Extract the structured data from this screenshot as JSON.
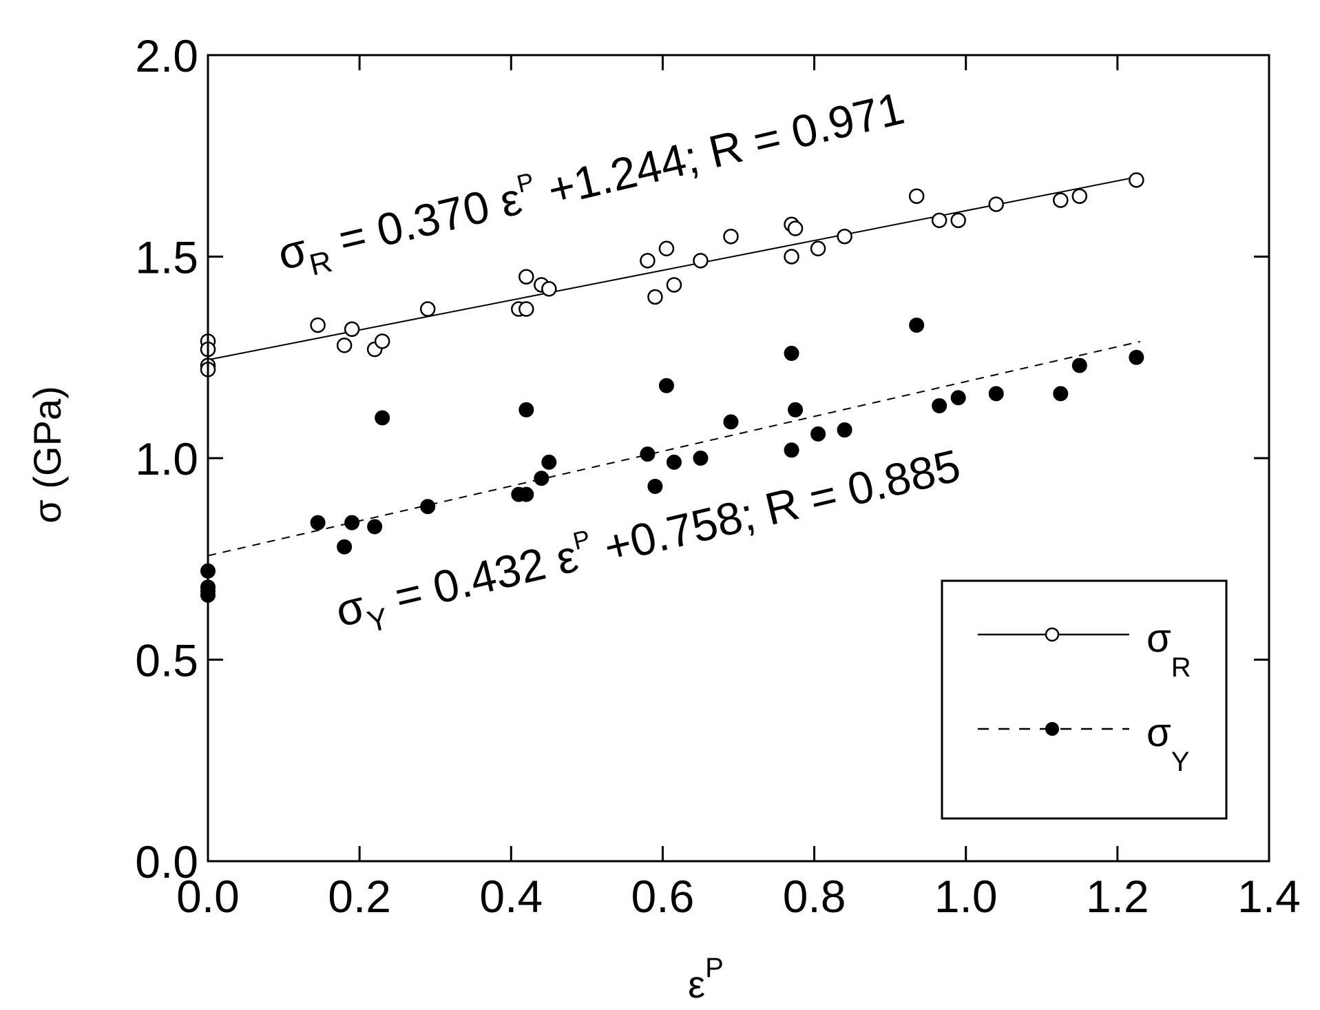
{
  "chart_data": {
    "type": "scatter",
    "title": "",
    "xlabel": "ε",
    "xlabel_sup": "P",
    "ylabel": "σ (GPa)",
    "xlim": [
      0.0,
      1.4
    ],
    "ylim": [
      0.0,
      2.0
    ],
    "x_ticks": [
      0.0,
      0.2,
      0.4,
      0.6,
      0.8,
      1.0,
      1.2,
      1.4
    ],
    "x_tick_labels": [
      "0.0",
      "0.2",
      "0.4",
      "0.6",
      "0.8",
      "1.0",
      "1.2",
      "1.4"
    ],
    "y_ticks": [
      0.0,
      0.5,
      1.0,
      1.5,
      2.0
    ],
    "y_tick_labels": [
      "0.0",
      "0.5",
      "1.0",
      "1.5",
      "2.0"
    ],
    "grid": false,
    "legend_position": "bottom-right",
    "series": [
      {
        "name": "σ",
        "subscript": "R",
        "marker": "open-circle",
        "line_style": "solid",
        "fit": {
          "slope": 0.37,
          "intercept": 1.244,
          "x_range": [
            0.0,
            1.23
          ]
        },
        "equation": {
          "lhs": "σ",
          "sub": "R",
          "mid": " = 0.370 ε",
          "sup": "P",
          "rhs": " +1.244;  R = 0.971"
        },
        "points": [
          {
            "x": 0.0,
            "y": 1.29
          },
          {
            "x": 0.0,
            "y": 1.27
          },
          {
            "x": 0.0,
            "y": 1.23
          },
          {
            "x": 0.0,
            "y": 1.22
          },
          {
            "x": 0.145,
            "y": 1.33
          },
          {
            "x": 0.18,
            "y": 1.28
          },
          {
            "x": 0.19,
            "y": 1.32
          },
          {
            "x": 0.22,
            "y": 1.27
          },
          {
            "x": 0.23,
            "y": 1.29
          },
          {
            "x": 0.29,
            "y": 1.37
          },
          {
            "x": 0.41,
            "y": 1.37
          },
          {
            "x": 0.42,
            "y": 1.37
          },
          {
            "x": 0.42,
            "y": 1.45
          },
          {
            "x": 0.44,
            "y": 1.43
          },
          {
            "x": 0.45,
            "y": 1.42
          },
          {
            "x": 0.58,
            "y": 1.49
          },
          {
            "x": 0.59,
            "y": 1.4
          },
          {
            "x": 0.605,
            "y": 1.52
          },
          {
            "x": 0.615,
            "y": 1.43
          },
          {
            "x": 0.65,
            "y": 1.49
          },
          {
            "x": 0.69,
            "y": 1.55
          },
          {
            "x": 0.77,
            "y": 1.58
          },
          {
            "x": 0.77,
            "y": 1.5
          },
          {
            "x": 0.775,
            "y": 1.57
          },
          {
            "x": 0.805,
            "y": 1.52
          },
          {
            "x": 0.84,
            "y": 1.55
          },
          {
            "x": 0.935,
            "y": 1.65
          },
          {
            "x": 0.965,
            "y": 1.59
          },
          {
            "x": 0.99,
            "y": 1.59
          },
          {
            "x": 1.04,
            "y": 1.63
          },
          {
            "x": 1.125,
            "y": 1.64
          },
          {
            "x": 1.15,
            "y": 1.65
          },
          {
            "x": 1.225,
            "y": 1.69
          }
        ]
      },
      {
        "name": "σ",
        "subscript": "Y",
        "marker": "filled-circle",
        "line_style": "dashed",
        "fit": {
          "slope": 0.432,
          "intercept": 0.758,
          "x_range": [
            0.0,
            1.23
          ]
        },
        "equation": {
          "lhs": "σ",
          "sub": "Y",
          "mid": " = 0.432 ε",
          "sup": "P",
          "rhs": " +0.758;  R = 0.885"
        },
        "points": [
          {
            "x": 0.0,
            "y": 0.72
          },
          {
            "x": 0.0,
            "y": 0.68
          },
          {
            "x": 0.0,
            "y": 0.67
          },
          {
            "x": 0.0,
            "y": 0.66
          },
          {
            "x": 0.145,
            "y": 0.84
          },
          {
            "x": 0.18,
            "y": 0.78
          },
          {
            "x": 0.19,
            "y": 0.84
          },
          {
            "x": 0.22,
            "y": 0.83
          },
          {
            "x": 0.23,
            "y": 1.1
          },
          {
            "x": 0.29,
            "y": 0.88
          },
          {
            "x": 0.41,
            "y": 0.91
          },
          {
            "x": 0.42,
            "y": 0.91
          },
          {
            "x": 0.42,
            "y": 1.12
          },
          {
            "x": 0.44,
            "y": 0.95
          },
          {
            "x": 0.45,
            "y": 0.99
          },
          {
            "x": 0.58,
            "y": 1.01
          },
          {
            "x": 0.59,
            "y": 0.93
          },
          {
            "x": 0.605,
            "y": 1.18
          },
          {
            "x": 0.615,
            "y": 0.99
          },
          {
            "x": 0.65,
            "y": 1.0
          },
          {
            "x": 0.69,
            "y": 1.09
          },
          {
            "x": 0.77,
            "y": 1.26
          },
          {
            "x": 0.77,
            "y": 1.02
          },
          {
            "x": 0.775,
            "y": 1.12
          },
          {
            "x": 0.805,
            "y": 1.06
          },
          {
            "x": 0.84,
            "y": 1.07
          },
          {
            "x": 0.935,
            "y": 1.33
          },
          {
            "x": 0.965,
            "y": 1.13
          },
          {
            "x": 0.99,
            "y": 1.15
          },
          {
            "x": 1.04,
            "y": 1.16
          },
          {
            "x": 1.125,
            "y": 1.16
          },
          {
            "x": 1.15,
            "y": 1.23
          },
          {
            "x": 1.225,
            "y": 1.25
          }
        ]
      }
    ]
  }
}
